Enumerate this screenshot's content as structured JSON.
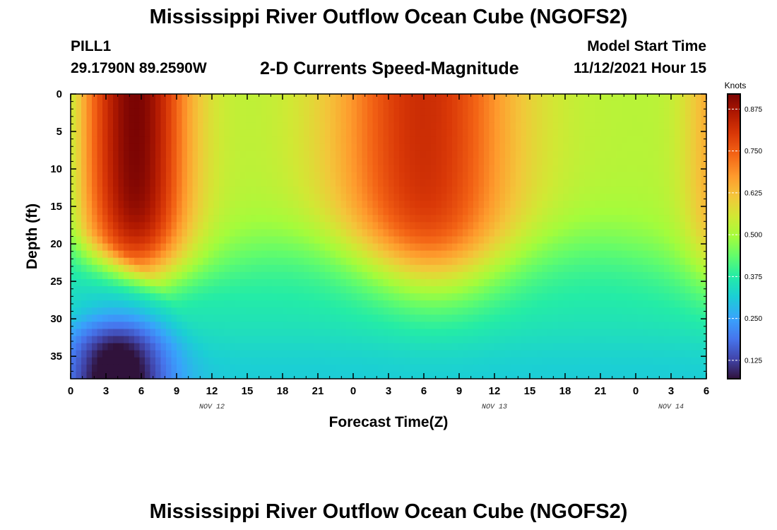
{
  "chart_data": {
    "type": "heatmap",
    "title": "Mississippi River Outflow Ocean Cube (NGOFS2)",
    "station": "PILL1",
    "coordinates": "29.1790N  89.2590W",
    "variable": "2-D Currents Speed-Magnitude",
    "model_start_label": "Model Start Time",
    "model_start_value": "11/12/2021 Hour 15",
    "xlabel": "Forecast Time(Z)",
    "ylabel": "Depth (ft)",
    "x_range_hours": [
      0,
      54
    ],
    "y_range_ft": [
      0,
      38
    ],
    "x_tick_labels": [
      "0",
      "3",
      "6",
      "9",
      "12",
      "15",
      "18",
      "21",
      "0",
      "3",
      "6",
      "9",
      "12",
      "15",
      "18",
      "21",
      "0",
      "3",
      "6"
    ],
    "y_tick_labels": [
      "0",
      "5",
      "10",
      "15",
      "20",
      "25",
      "30",
      "35"
    ],
    "date_labels": [
      {
        "text": "NOV 12",
        "hour": 12
      },
      {
        "text": "NOV 13",
        "hour": 36
      },
      {
        "text": "NOV 14",
        "hour": 51
      }
    ],
    "colorbar": {
      "units": "Knots",
      "min": 0.07,
      "max": 0.92,
      "tick_labels": [
        "0.875",
        "0.750",
        "0.625",
        "0.500",
        "0.375",
        "0.250",
        "0.125"
      ],
      "tick_values": [
        0.875,
        0.75,
        0.625,
        0.5,
        0.375,
        0.25,
        0.125
      ]
    },
    "field_description_knots": {
      "peak1": {
        "hour": 5.5,
        "depth_ft": 6,
        "speed": 0.91
      },
      "min1": {
        "hour": 8.5,
        "speed": 0.52
      },
      "peak2": {
        "hour": 30,
        "depth_ft": 7,
        "speed": 0.8
      },
      "min2": {
        "hour": 42,
        "speed": 0.52
      },
      "deep_min": {
        "hour": 4,
        "depth_ft": 36,
        "speed": 0.08
      }
    },
    "colors": {
      "axis": "#000000",
      "background": "#ffffff",
      "colormap": [
        "#30123b",
        "#4145ab",
        "#4675ed",
        "#39a2fc",
        "#1bcfd4",
        "#24eca6",
        "#61fc6c",
        "#a4fc3b",
        "#d1e834",
        "#f3c63a",
        "#fe9b2d",
        "#f36315",
        "#d93807",
        "#b11901",
        "#7a0403"
      ]
    }
  }
}
